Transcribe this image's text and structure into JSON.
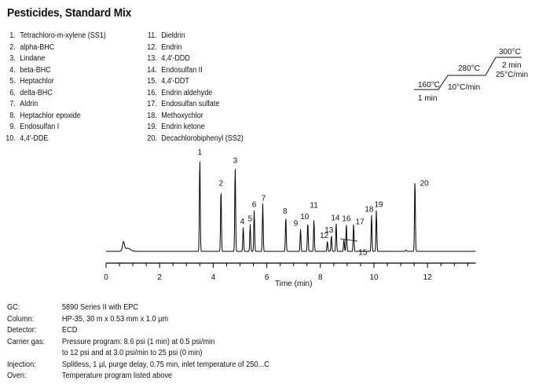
{
  "title": "Pesticides, Standard Mix",
  "compounds": [
    {
      "num": "1.",
      "name": "Tetrachloro-m-xylene (SS1)"
    },
    {
      "num": "2.",
      "name": "alpha-BHC"
    },
    {
      "num": "3.",
      "name": "Lindane"
    },
    {
      "num": "4.",
      "name": "beta-BHC"
    },
    {
      "num": "5.",
      "name": "Heptachlor"
    },
    {
      "num": "6.",
      "name": "delta-BHC"
    },
    {
      "num": "7.",
      "name": "Aldrin"
    },
    {
      "num": "8.",
      "name": "Heptachlor epoxide"
    },
    {
      "num": "9.",
      "name": "Endosulfan I"
    },
    {
      "num": "10.",
      "name": "4,4′-DDE"
    },
    {
      "num": "11.",
      "name": "Dieldrin"
    },
    {
      "num": "12.",
      "name": "Endrin"
    },
    {
      "num": "13.",
      "name": "4,4′-DDD"
    },
    {
      "num": "14.",
      "name": "Endosulfan II"
    },
    {
      "num": "15.",
      "name": "4,4′-DDT"
    },
    {
      "num": "16.",
      "name": "Endrin aldehyde"
    },
    {
      "num": "17.",
      "name": "Endosulfan sulfate"
    },
    {
      "num": "18.",
      "name": "Methoxychlor"
    },
    {
      "num": "19.",
      "name": "Endrin ketone"
    },
    {
      "num": "20.",
      "name": "Decachlorobiphenyl (SS2)"
    }
  ],
  "temp_program": {
    "t1": "160°C",
    "hold1": "1 min",
    "rate1": "10°C/min",
    "t2": "280°C",
    "rate2": "25°C/min",
    "t3": "300°C",
    "hold3": "2 min"
  },
  "conditions": [
    {
      "label": "GC:",
      "value": "5890 Series II with EPC"
    },
    {
      "label": "Column:",
      "value": "HP-35, 30 m x 0.53 mm x 1.0 µm"
    },
    {
      "label": "Detector:",
      "value": "ECD"
    },
    {
      "label": "Carrier gas:",
      "value": "Pressure program: 8.6 psi (1 min) at 0.5 psi/min",
      "value2": "to 12 psi and at 3.0 psi/min to 25 psi (0 min)"
    },
    {
      "label": "Injection:",
      "value": "Splitless, 1 µl, purge delay, 0.75 min, inlet temperature of 250...C"
    },
    {
      "label": "Oven:",
      "value": "Temperature program listed above"
    }
  ],
  "chart_data": {
    "type": "line",
    "title": "Pesticides, Standard Mix",
    "xlabel": "Time (min)",
    "ylabel": "",
    "xlim": [
      0,
      13.8
    ],
    "xticks": [
      0,
      2,
      4,
      6,
      8,
      10,
      12
    ],
    "grid": false,
    "peaks": [
      {
        "label": "1",
        "time": 3.5,
        "rel_height": 1.0
      },
      {
        "label": "2",
        "time": 4.29,
        "rel_height": 0.67
      },
      {
        "label": "3",
        "time": 4.82,
        "rel_height": 0.91
      },
      {
        "label": "4",
        "time": 5.12,
        "rel_height": 0.26
      },
      {
        "label": "5",
        "time": 5.38,
        "rel_height": 0.29
      },
      {
        "label": "6",
        "time": 5.53,
        "rel_height": 0.44
      },
      {
        "label": "7",
        "time": 5.85,
        "rel_height": 0.51
      },
      {
        "label": "8",
        "time": 6.71,
        "rel_height": 0.37
      },
      {
        "label": "9",
        "time": 7.26,
        "rel_height": 0.24
      },
      {
        "label": "10",
        "time": 7.53,
        "rel_height": 0.31
      },
      {
        "label": "11",
        "time": 7.76,
        "rel_height": 0.34
      },
      {
        "label": "12",
        "time": 8.26,
        "rel_height": 0.11
      },
      {
        "label": "13",
        "time": 8.41,
        "rel_height": 0.17
      },
      {
        "label": "14",
        "time": 8.59,
        "rel_height": 0.3
      },
      {
        "label": "15",
        "time": 8.88,
        "rel_height": 0.13
      },
      {
        "label": "16",
        "time": 8.97,
        "rel_height": 0.29
      },
      {
        "label": "17",
        "time": 9.24,
        "rel_height": 0.29
      },
      {
        "label": "18",
        "time": 9.91,
        "rel_height": 0.39
      },
      {
        "label": "19",
        "time": 10.09,
        "rel_height": 0.44
      },
      {
        "label": "20",
        "time": 11.53,
        "rel_height": 0.77
      }
    ]
  }
}
